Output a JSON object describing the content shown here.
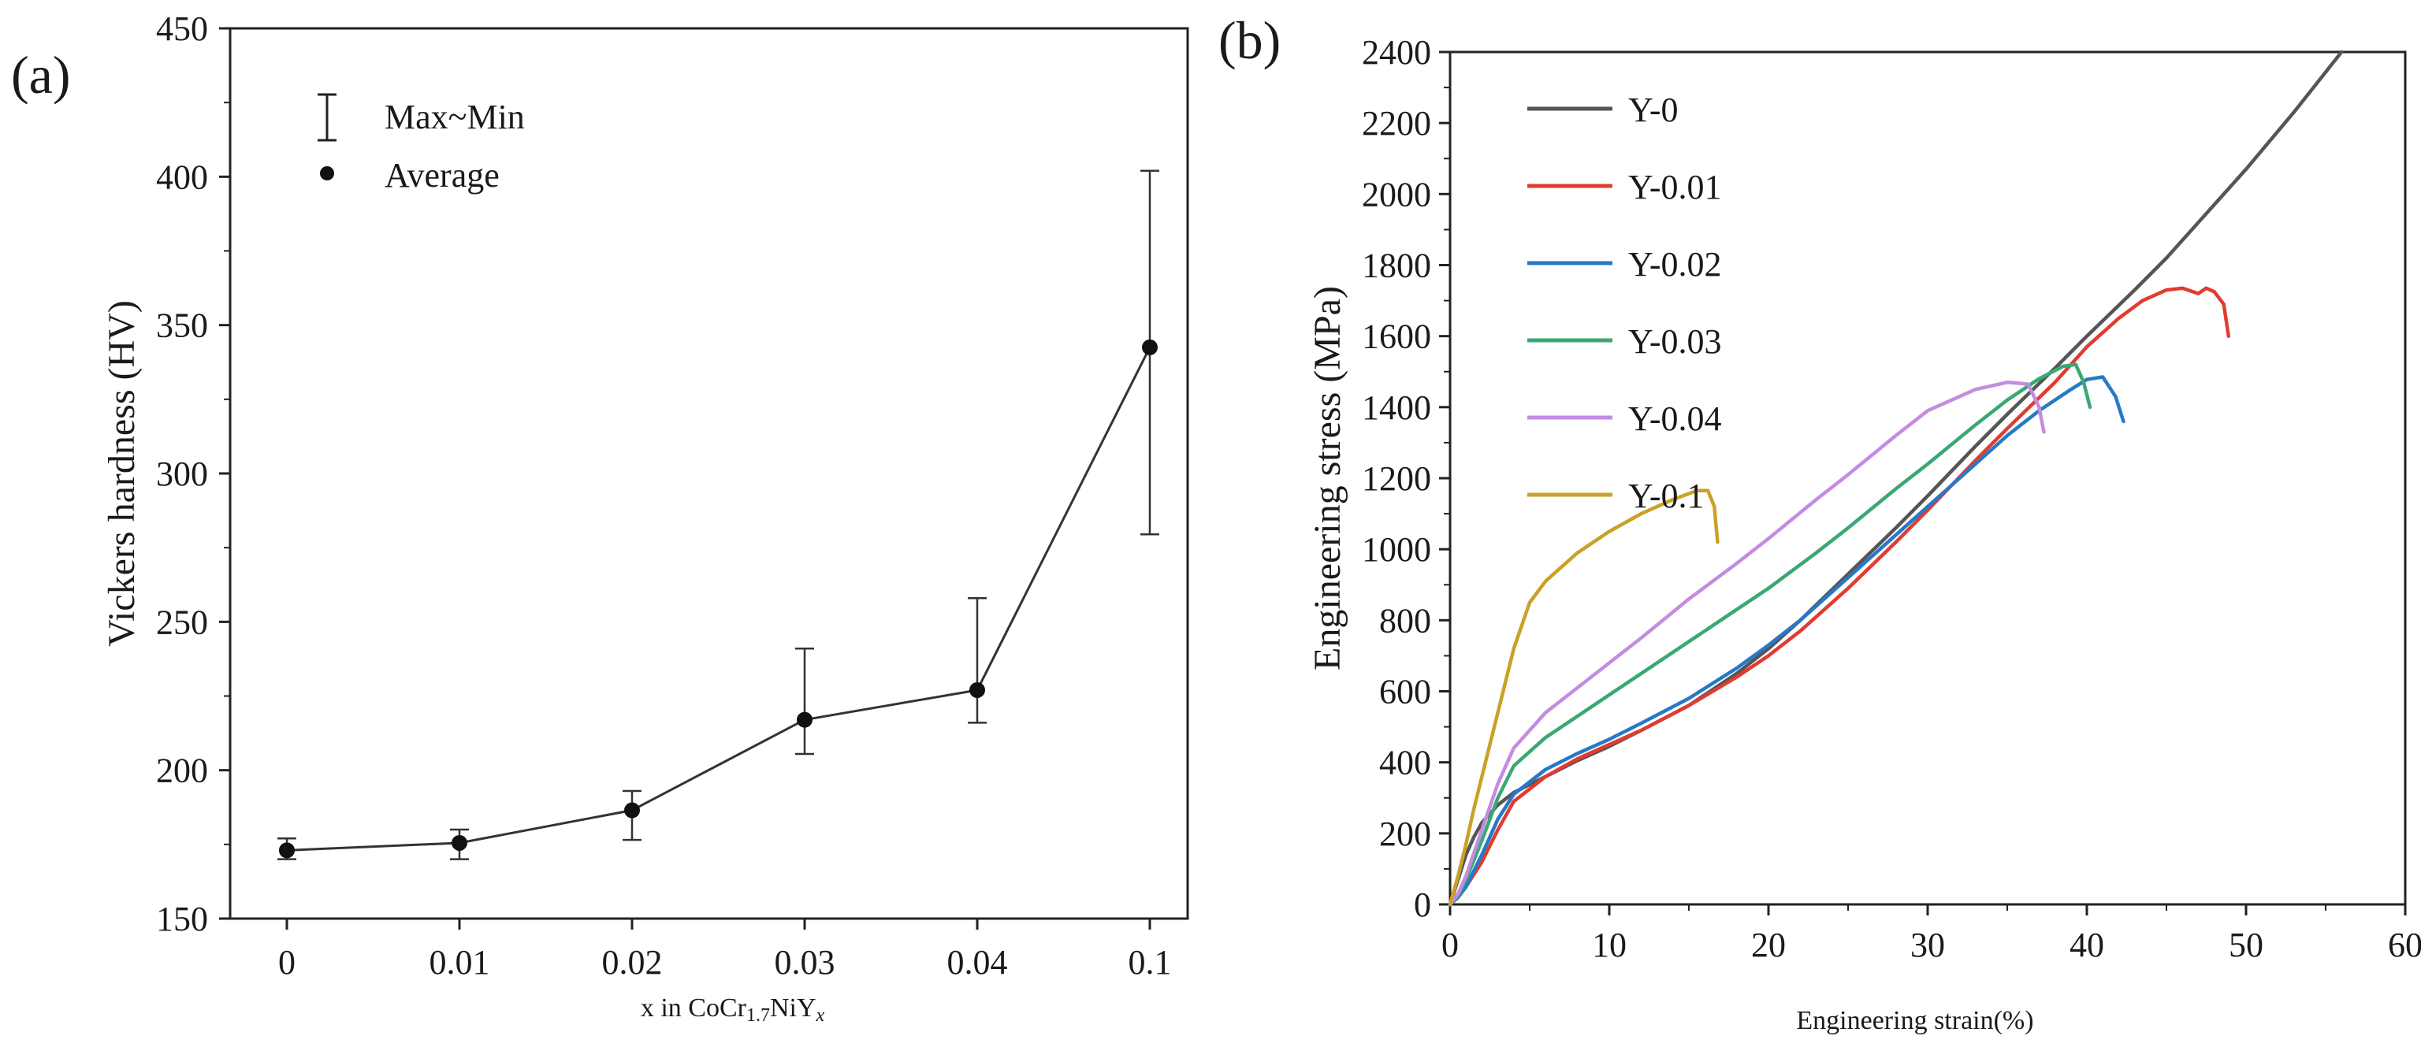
{
  "chart_data": [
    {
      "type": "line",
      "panel_label": "(a)",
      "title": "",
      "xlabel_parts": [
        "x in CoCr",
        "1.7",
        "NiY",
        "x"
      ],
      "ylabel": "Vickers hardness (HV)",
      "categories": [
        "0",
        "0.01",
        "0.02",
        "0.03",
        "0.04",
        "0.1"
      ],
      "ylim": [
        150,
        450
      ],
      "yticks": [
        150,
        200,
        250,
        300,
        350,
        400,
        450
      ],
      "series": [
        {
          "name": "Average",
          "values": [
            173,
            175.5,
            186.5,
            217,
            227,
            342.5
          ],
          "max": [
            177,
            180,
            193,
            241,
            258,
            402
          ],
          "min": [
            170,
            170,
            176.5,
            205.5,
            216,
            279.5
          ]
        }
      ],
      "legend": [
        "Max~Min",
        "Average"
      ],
      "legend_position": "top-left",
      "grid": false
    },
    {
      "type": "line",
      "panel_label": "(b)",
      "title": "",
      "xlabel": "Engineering strain(%)",
      "ylabel": "Engineering stress (MPa)",
      "xlim": [
        0,
        60
      ],
      "ylim": [
        0,
        2400
      ],
      "xticks": [
        0,
        10,
        20,
        30,
        40,
        50,
        60
      ],
      "yticks": [
        0,
        200,
        400,
        600,
        800,
        1000,
        1200,
        1400,
        1600,
        1800,
        2000,
        2200,
        2400
      ],
      "legend_position": "top-left",
      "grid": false,
      "series": [
        {
          "name": "Y-0",
          "color": "#555555",
          "x": [
            0,
            0.5,
            1,
            1.5,
            2,
            3,
            4,
            6,
            8,
            10,
            12,
            15,
            18,
            20,
            22,
            25,
            28,
            30,
            33,
            35,
            38,
            40,
            43,
            45,
            48,
            50,
            53,
            56
          ],
          "y": [
            0,
            70,
            140,
            190,
            230,
            280,
            315,
            360,
            405,
            445,
            490,
            560,
            650,
            720,
            800,
            930,
            1060,
            1150,
            1290,
            1380,
            1510,
            1600,
            1730,
            1820,
            1970,
            2070,
            2230,
            2400
          ]
        },
        {
          "name": "Y-0.01",
          "color": "#e03c31",
          "x": [
            0,
            0.5,
            1,
            2,
            3,
            4,
            6,
            8,
            10,
            12,
            15,
            18,
            20,
            22,
            25,
            28,
            30,
            33,
            35,
            38,
            40,
            42,
            43.5,
            45,
            46,
            47,
            47.5,
            48,
            48.6,
            48.9
          ],
          "y": [
            0,
            20,
            50,
            120,
            210,
            290,
            360,
            410,
            450,
            490,
            560,
            640,
            700,
            770,
            890,
            1020,
            1110,
            1250,
            1340,
            1470,
            1570,
            1650,
            1700,
            1730,
            1735,
            1720,
            1735,
            1725,
            1690,
            1600
          ]
        },
        {
          "name": "Y-0.02",
          "color": "#2878c8",
          "x": [
            0,
            0.5,
            1,
            2,
            3,
            4,
            6,
            8,
            10,
            12,
            15,
            18,
            20,
            22,
            25,
            28,
            30,
            33,
            35,
            37,
            39,
            40,
            41,
            41.8,
            42.3
          ],
          "y": [
            0,
            20,
            50,
            140,
            240,
            310,
            380,
            425,
            465,
            510,
            580,
            665,
            730,
            800,
            920,
            1040,
            1120,
            1240,
            1320,
            1390,
            1450,
            1478,
            1485,
            1430,
            1360
          ]
        },
        {
          "name": "Y-0.03",
          "color": "#3aa873",
          "x": [
            0,
            0.5,
            1,
            2,
            3,
            4,
            6,
            8,
            10,
            12,
            15,
            18,
            20,
            23,
            25,
            28,
            30,
            33,
            35,
            37,
            38.5,
            39.3,
            39.8,
            40.2
          ],
          "y": [
            0,
            25,
            70,
            180,
            300,
            390,
            470,
            530,
            590,
            650,
            740,
            830,
            890,
            990,
            1060,
            1170,
            1240,
            1350,
            1420,
            1480,
            1515,
            1520,
            1470,
            1400
          ]
        },
        {
          "name": "Y-0.04",
          "color": "#c48ce0",
          "x": [
            0,
            0.5,
            1,
            2,
            3,
            4,
            6,
            8,
            10,
            12,
            15,
            18,
            20,
            23,
            25,
            28,
            30,
            33,
            35,
            36.3,
            37,
            37.3
          ],
          "y": [
            0,
            30,
            80,
            210,
            340,
            440,
            540,
            610,
            680,
            750,
            860,
            960,
            1030,
            1140,
            1210,
            1320,
            1390,
            1450,
            1470,
            1465,
            1400,
            1330
          ]
        },
        {
          "name": "Y-0.1",
          "color": "#c9a227",
          "x": [
            0,
            0.5,
            1,
            1.5,
            2,
            3,
            4,
            5,
            6,
            7,
            8,
            10,
            12,
            14,
            15.5,
            16.2,
            16.6,
            16.8
          ],
          "y": [
            0,
            80,
            170,
            270,
            360,
            540,
            720,
            850,
            910,
            950,
            990,
            1050,
            1100,
            1140,
            1165,
            1165,
            1120,
            1020
          ]
        }
      ]
    }
  ]
}
